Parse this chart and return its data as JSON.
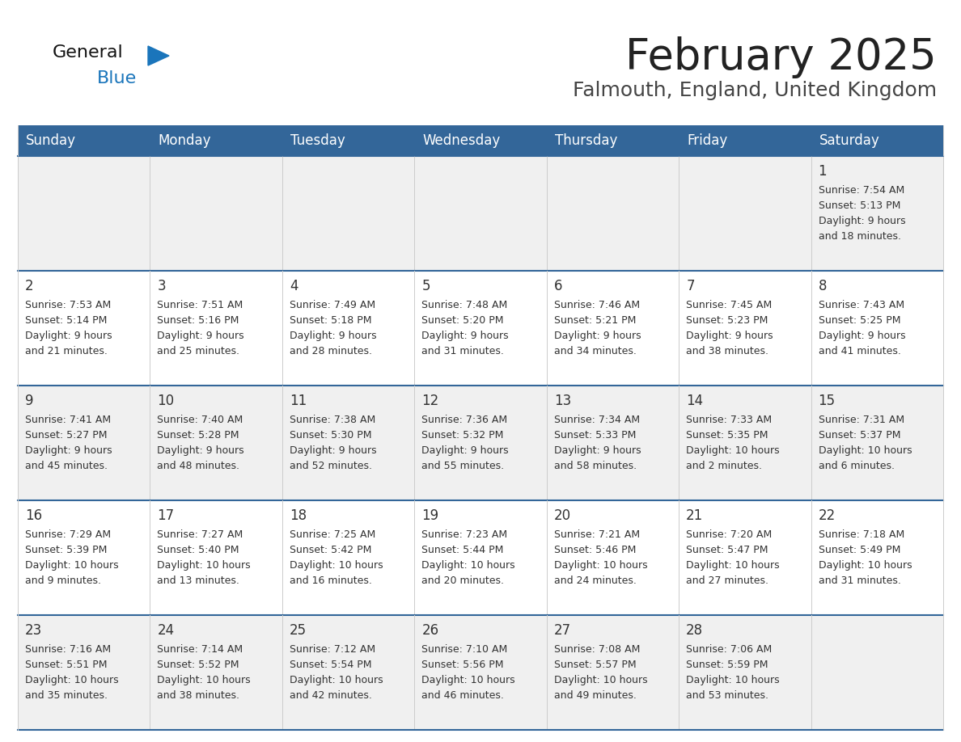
{
  "title": "February 2025",
  "subtitle": "Falmouth, England, United Kingdom",
  "days_of_week": [
    "Sunday",
    "Monday",
    "Tuesday",
    "Wednesday",
    "Thursday",
    "Friday",
    "Saturday"
  ],
  "header_bg": "#336699",
  "header_text_color": "#ffffff",
  "row_bg_light": "#f0f0f0",
  "row_bg_white": "#ffffff",
  "divider_color": "#336699",
  "text_color": "#333333",
  "day_number_color": "#333333",
  "title_color": "#222222",
  "subtitle_color": "#444444",
  "logo_general_color": "#111111",
  "logo_blue_color": "#1a75bb",
  "calendar_data": [
    [
      null,
      null,
      null,
      null,
      null,
      null,
      {
        "day": "1",
        "sunrise": "7:54 AM",
        "sunset": "5:13 PM",
        "daylight_h": "9 hours",
        "daylight_m": "and 18 minutes."
      }
    ],
    [
      {
        "day": "2",
        "sunrise": "7:53 AM",
        "sunset": "5:14 PM",
        "daylight_h": "9 hours",
        "daylight_m": "and 21 minutes."
      },
      {
        "day": "3",
        "sunrise": "7:51 AM",
        "sunset": "5:16 PM",
        "daylight_h": "9 hours",
        "daylight_m": "and 25 minutes."
      },
      {
        "day": "4",
        "sunrise": "7:49 AM",
        "sunset": "5:18 PM",
        "daylight_h": "9 hours",
        "daylight_m": "and 28 minutes."
      },
      {
        "day": "5",
        "sunrise": "7:48 AM",
        "sunset": "5:20 PM",
        "daylight_h": "9 hours",
        "daylight_m": "and 31 minutes."
      },
      {
        "day": "6",
        "sunrise": "7:46 AM",
        "sunset": "5:21 PM",
        "daylight_h": "9 hours",
        "daylight_m": "and 34 minutes."
      },
      {
        "day": "7",
        "sunrise": "7:45 AM",
        "sunset": "5:23 PM",
        "daylight_h": "9 hours",
        "daylight_m": "and 38 minutes."
      },
      {
        "day": "8",
        "sunrise": "7:43 AM",
        "sunset": "5:25 PM",
        "daylight_h": "9 hours",
        "daylight_m": "and 41 minutes."
      }
    ],
    [
      {
        "day": "9",
        "sunrise": "7:41 AM",
        "sunset": "5:27 PM",
        "daylight_h": "9 hours",
        "daylight_m": "and 45 minutes."
      },
      {
        "day": "10",
        "sunrise": "7:40 AM",
        "sunset": "5:28 PM",
        "daylight_h": "9 hours",
        "daylight_m": "and 48 minutes."
      },
      {
        "day": "11",
        "sunrise": "7:38 AM",
        "sunset": "5:30 PM",
        "daylight_h": "9 hours",
        "daylight_m": "and 52 minutes."
      },
      {
        "day": "12",
        "sunrise": "7:36 AM",
        "sunset": "5:32 PM",
        "daylight_h": "9 hours",
        "daylight_m": "and 55 minutes."
      },
      {
        "day": "13",
        "sunrise": "7:34 AM",
        "sunset": "5:33 PM",
        "daylight_h": "9 hours",
        "daylight_m": "and 58 minutes."
      },
      {
        "day": "14",
        "sunrise": "7:33 AM",
        "sunset": "5:35 PM",
        "daylight_h": "10 hours",
        "daylight_m": "and 2 minutes."
      },
      {
        "day": "15",
        "sunrise": "7:31 AM",
        "sunset": "5:37 PM",
        "daylight_h": "10 hours",
        "daylight_m": "and 6 minutes."
      }
    ],
    [
      {
        "day": "16",
        "sunrise": "7:29 AM",
        "sunset": "5:39 PM",
        "daylight_h": "10 hours",
        "daylight_m": "and 9 minutes."
      },
      {
        "day": "17",
        "sunrise": "7:27 AM",
        "sunset": "5:40 PM",
        "daylight_h": "10 hours",
        "daylight_m": "and 13 minutes."
      },
      {
        "day": "18",
        "sunrise": "7:25 AM",
        "sunset": "5:42 PM",
        "daylight_h": "10 hours",
        "daylight_m": "and 16 minutes."
      },
      {
        "day": "19",
        "sunrise": "7:23 AM",
        "sunset": "5:44 PM",
        "daylight_h": "10 hours",
        "daylight_m": "and 20 minutes."
      },
      {
        "day": "20",
        "sunrise": "7:21 AM",
        "sunset": "5:46 PM",
        "daylight_h": "10 hours",
        "daylight_m": "and 24 minutes."
      },
      {
        "day": "21",
        "sunrise": "7:20 AM",
        "sunset": "5:47 PM",
        "daylight_h": "10 hours",
        "daylight_m": "and 27 minutes."
      },
      {
        "day": "22",
        "sunrise": "7:18 AM",
        "sunset": "5:49 PM",
        "daylight_h": "10 hours",
        "daylight_m": "and 31 minutes."
      }
    ],
    [
      {
        "day": "23",
        "sunrise": "7:16 AM",
        "sunset": "5:51 PM",
        "daylight_h": "10 hours",
        "daylight_m": "and 35 minutes."
      },
      {
        "day": "24",
        "sunrise": "7:14 AM",
        "sunset": "5:52 PM",
        "daylight_h": "10 hours",
        "daylight_m": "and 38 minutes."
      },
      {
        "day": "25",
        "sunrise": "7:12 AM",
        "sunset": "5:54 PM",
        "daylight_h": "10 hours",
        "daylight_m": "and 42 minutes."
      },
      {
        "day": "26",
        "sunrise": "7:10 AM",
        "sunset": "5:56 PM",
        "daylight_h": "10 hours",
        "daylight_m": "and 46 minutes."
      },
      {
        "day": "27",
        "sunrise": "7:08 AM",
        "sunset": "5:57 PM",
        "daylight_h": "10 hours",
        "daylight_m": "and 49 minutes."
      },
      {
        "day": "28",
        "sunrise": "7:06 AM",
        "sunset": "5:59 PM",
        "daylight_h": "10 hours",
        "daylight_m": "and 53 minutes."
      },
      null
    ]
  ]
}
